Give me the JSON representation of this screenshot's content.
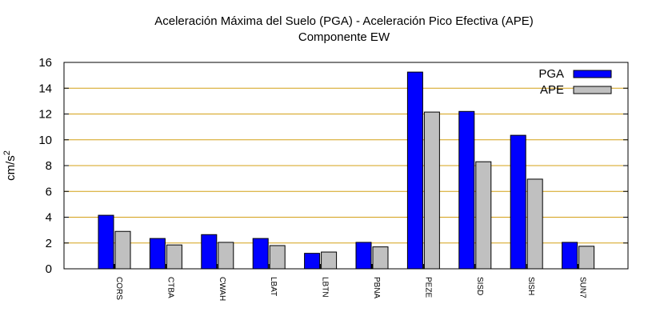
{
  "chart_data": {
    "type": "bar",
    "title": "Aceleración Máxima del Suelo (PGA) -  Aceleración Pico Efectiva (APE)",
    "subtitle": "Componente EW",
    "ylabel": "cm/s",
    "ylabel_sup": "2",
    "ylim": [
      0,
      16
    ],
    "yticks": [
      0,
      2,
      4,
      6,
      8,
      10,
      12,
      14,
      16
    ],
    "grid": true,
    "legend": "top-right",
    "categories": [
      "CORS",
      "CTBA",
      "CWAH",
      "LBAT",
      "LBTN",
      "PBNA",
      "PEZE",
      "SISD",
      "SISH",
      "SUN7"
    ],
    "series": [
      {
        "name": "PGA",
        "color": "#0000ff",
        "values": [
          4.15,
          2.35,
          2.65,
          2.35,
          1.2,
          2.05,
          15.25,
          12.2,
          10.35,
          2.05
        ]
      },
      {
        "name": "APE",
        "color": "#c0c0c0",
        "values": [
          2.9,
          1.85,
          2.05,
          1.8,
          1.3,
          1.7,
          12.15,
          8.3,
          6.95,
          1.75
        ]
      }
    ],
    "grid_color": "#d4a017"
  }
}
